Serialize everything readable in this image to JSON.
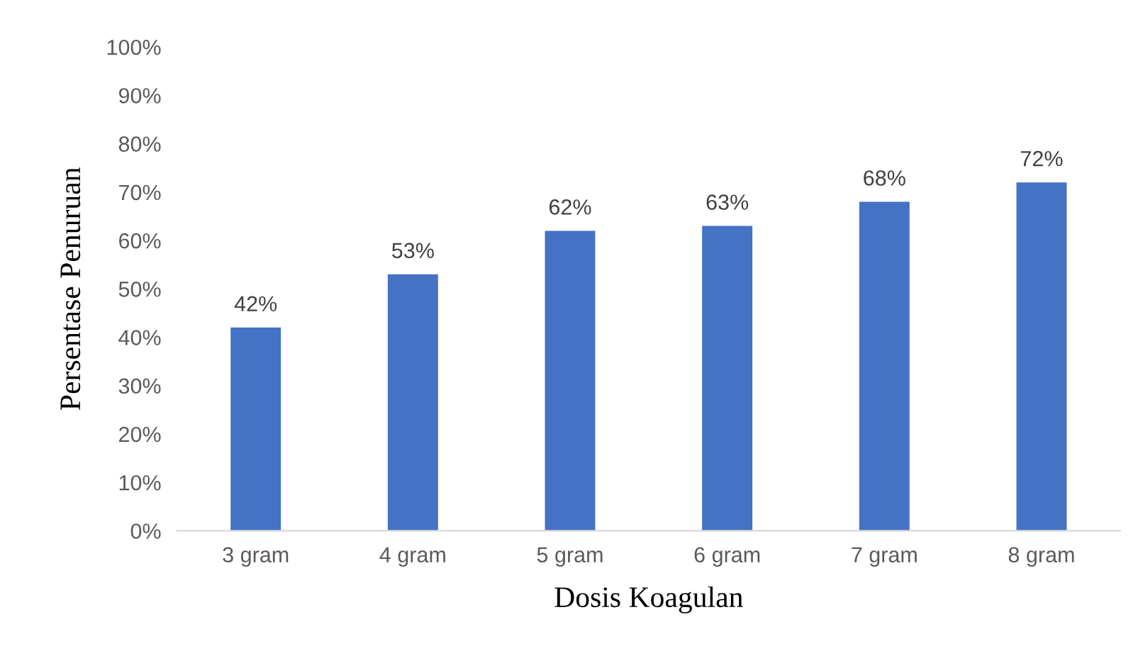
{
  "chart_data": {
    "type": "bar",
    "xlabel": "Dosis Koagulan",
    "ylabel": "Persentase Penuruan",
    "categories": [
      "3 gram",
      "4 gram",
      "5 gram",
      "6 gram",
      "7 gram",
      "8 gram"
    ],
    "values": [
      42,
      53,
      62,
      63,
      68,
      72
    ],
    "color": "#4472c4",
    "value_labels": [
      "42%",
      "53%",
      "62%",
      "63%",
      "68%",
      "72%"
    ],
    "ylim": [
      0,
      100
    ],
    "yticks": [
      {
        "value": 0,
        "label": "0%"
      },
      {
        "value": 10,
        "label": "10%"
      },
      {
        "value": 20,
        "label": "20%"
      },
      {
        "value": 30,
        "label": "30%"
      },
      {
        "value": 40,
        "label": "40%"
      },
      {
        "value": 50,
        "label": "50%"
      },
      {
        "value": 60,
        "label": "60%"
      },
      {
        "value": 70,
        "label": "70%"
      },
      {
        "value": 80,
        "label": "80%"
      },
      {
        "value": 90,
        "label": "90%"
      },
      {
        "value": 100,
        "label": "100%"
      }
    ],
    "grid": false,
    "legend": false
  }
}
